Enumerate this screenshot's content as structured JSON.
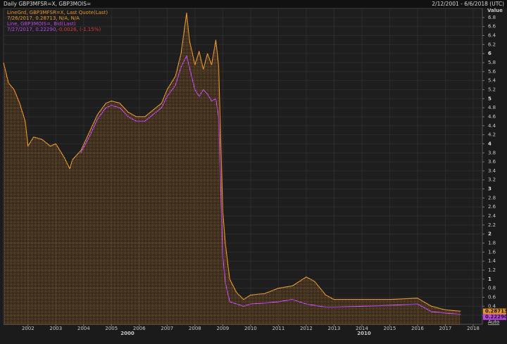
{
  "chart_data": {
    "type": "line",
    "title": "Daily GBP3MFSR=X, GBP3MOIS=",
    "date_range": "2/12/2001 - 6/6/2018 (UTC)",
    "y_axis_label": "Value",
    "legend": [
      {
        "text": "LineGrd, GBP3MFSR=X, Last Quote(Last)",
        "color": "#e8962a"
      },
      {
        "text": "7/26/2017, 0.28713, N/A, N/A",
        "color": "#e8962a"
      },
      {
        "text": "Line, GBP3MOIS=, Bid(Last)",
        "color": "#c048e8"
      },
      {
        "text": "7/27/2017, 0.22290, ",
        "color": "#c048e8"
      },
      {
        "text": "-0.0026, (-1.15%)",
        "color": "#e0383a"
      }
    ],
    "x": [
      2001.12,
      2001.3,
      2001.5,
      2001.7,
      2001.9,
      2002.0,
      2002.2,
      2002.5,
      2002.8,
      2003.0,
      2003.3,
      2003.5,
      2003.6,
      2003.9,
      2004.2,
      2004.5,
      2004.8,
      2005.0,
      2005.3,
      2005.6,
      2005.9,
      2006.2,
      2006.5,
      2006.8,
      2007.0,
      2007.3,
      2007.5,
      2007.7,
      2007.8,
      2008.0,
      2008.15,
      2008.3,
      2008.45,
      2008.6,
      2008.75,
      2008.85,
      2009.0,
      2009.1,
      2009.25,
      2009.5,
      2009.75,
      2010.0,
      2010.5,
      2011.0,
      2011.5,
      2012.0,
      2012.3,
      2012.7,
      2013.0,
      2014.0,
      2015.0,
      2016.0,
      2016.5,
      2017.0,
      2017.55
    ],
    "series": [
      {
        "name": "GBP3MFSR=X",
        "color": "#e8962a",
        "area": true,
        "last_value": 0.28713,
        "last_value_label": "0.28713",
        "values": [
          5.8,
          5.35,
          5.2,
          4.9,
          4.5,
          3.95,
          4.15,
          4.1,
          3.95,
          4.0,
          3.7,
          3.45,
          3.65,
          3.85,
          4.25,
          4.65,
          4.9,
          4.95,
          4.9,
          4.7,
          4.6,
          4.6,
          4.75,
          4.9,
          5.2,
          5.5,
          6.0,
          6.9,
          6.3,
          5.75,
          6.05,
          5.65,
          6.0,
          5.75,
          6.3,
          5.75,
          2.5,
          1.75,
          1.0,
          0.7,
          0.55,
          0.65,
          0.68,
          0.8,
          0.85,
          1.05,
          0.95,
          0.65,
          0.55,
          0.55,
          0.55,
          0.58,
          0.4,
          0.32,
          0.29
        ]
      },
      {
        "name": "GBP3MOIS=",
        "color": "#c048e8",
        "area": false,
        "last_value": 0.2229,
        "last_value_label": "0.22290",
        "values": [
          null,
          null,
          null,
          null,
          null,
          null,
          null,
          null,
          null,
          null,
          null,
          null,
          null,
          3.8,
          4.15,
          4.55,
          4.8,
          4.85,
          4.8,
          4.6,
          4.5,
          4.5,
          4.65,
          4.8,
          5.05,
          5.3,
          5.7,
          5.95,
          5.7,
          5.2,
          5.05,
          5.2,
          5.1,
          4.95,
          5.0,
          4.6,
          1.5,
          0.9,
          0.5,
          0.45,
          0.4,
          0.45,
          0.47,
          0.5,
          0.55,
          0.45,
          0.42,
          0.38,
          0.38,
          0.4,
          0.42,
          0.45,
          0.28,
          0.25,
          0.22
        ]
      }
    ],
    "xlim": [
      2001.12,
      2018.33
    ],
    "xticks": [
      2002,
      2003,
      2004,
      2005,
      2006,
      2007,
      2008,
      2009,
      2010,
      2011,
      2012,
      2013,
      2014,
      2015,
      2016,
      2017,
      2018
    ],
    "decade_labels": [
      "2000",
      "2010"
    ],
    "ylim": [
      0,
      7
    ],
    "yticks": [
      0.2,
      0.4,
      0.6,
      0.8,
      1,
      1.2,
      1.4,
      1.6,
      1.8,
      2,
      2.2,
      2.4,
      2.6,
      2.8,
      3,
      3.2,
      3.4,
      3.6,
      3.8,
      4,
      4.2,
      4.4,
      4.6,
      4.8,
      5,
      5.2,
      5.4,
      5.6,
      5.8,
      6,
      6.2,
      6.4,
      6.6,
      6.8
    ],
    "scale_mode": "Auto",
    "grid": true
  }
}
